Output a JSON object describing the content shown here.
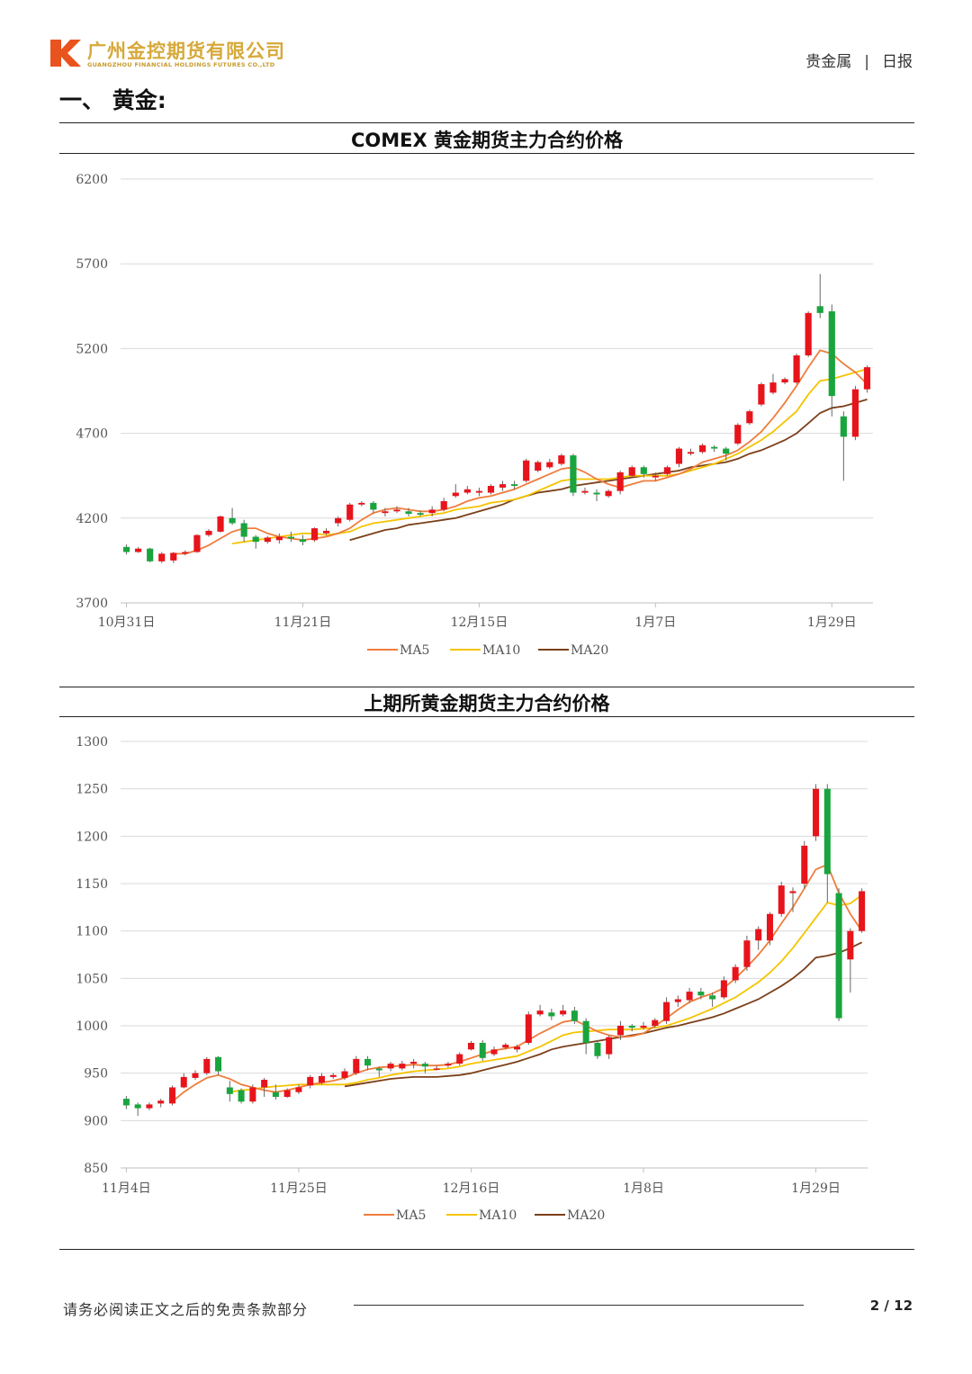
{
  "header": {
    "company_cn": "广州金控期货有限公司",
    "company_en": "GUANGZHOU FINANCIAL HOLDINGS FUTURES CO.,LTD",
    "category": "贵金属",
    "separator": "|",
    "report_type": "日报",
    "logo_letter": "K"
  },
  "section_title": "一、 黄金:",
  "colors": {
    "up": "#e8141b",
    "down": "#1aa43e",
    "ma5": "#ef7d3c",
    "ma10": "#f5c400",
    "ma20": "#7b3f1a",
    "grid": "#d9d9d9"
  },
  "chart_data": [
    {
      "type": "candlestick",
      "title": "COMEX 黄金期货主力合约价格",
      "yticks": [
        3700,
        4200,
        4700,
        5200,
        5700,
        6200
      ],
      "ylim": [
        3700,
        6200
      ],
      "xtick_labels": [
        "10月31日",
        "11月21日",
        "12月15日",
        "1月7日",
        "1月29日"
      ],
      "xtick_index": [
        0,
        15,
        30,
        45,
        60
      ],
      "legend": [
        "MA5",
        "MA10",
        "MA20"
      ],
      "legend_position": "bottom",
      "candles": [
        [
          4030,
          4000,
          4045,
          3985
        ],
        [
          4000,
          4020,
          4030,
          3995
        ],
        [
          4020,
          3945,
          4025,
          3940
        ],
        [
          3945,
          3990,
          4000,
          3935
        ],
        [
          3950,
          3995,
          4000,
          3935
        ],
        [
          3990,
          4000,
          4010,
          3980
        ],
        [
          4000,
          4100,
          4105,
          3995
        ],
        [
          4100,
          4125,
          4135,
          4090
        ],
        [
          4120,
          4210,
          4215,
          4115
        ],
        [
          4200,
          4170,
          4260,
          4160
        ],
        [
          4170,
          4090,
          4190,
          4060
        ],
        [
          4090,
          4060,
          4100,
          4020
        ],
        [
          4060,
          4085,
          4095,
          4050
        ],
        [
          4070,
          4090,
          4110,
          4050
        ],
        [
          4090,
          4080,
          4120,
          4060
        ],
        [
          4075,
          4060,
          4100,
          4040
        ],
        [
          4070,
          4140,
          4145,
          4060
        ],
        [
          4110,
          4125,
          4140,
          4100
        ],
        [
          4170,
          4200,
          4210,
          4150
        ],
        [
          4190,
          4280,
          4290,
          4180
        ],
        [
          4280,
          4290,
          4300,
          4270
        ],
        [
          4290,
          4250,
          4300,
          4230
        ],
        [
          4230,
          4240,
          4260,
          4210
        ],
        [
          4240,
          4250,
          4270,
          4230
        ],
        [
          4240,
          4225,
          4260,
          4210
        ],
        [
          4230,
          4220,
          4245,
          4210
        ],
        [
          4230,
          4250,
          4270,
          4210
        ],
        [
          4250,
          4300,
          4320,
          4240
        ],
        [
          4330,
          4350,
          4400,
          4320
        ],
        [
          4350,
          4370,
          4390,
          4340
        ],
        [
          4350,
          4360,
          4380,
          4330
        ],
        [
          4350,
          4390,
          4400,
          4340
        ],
        [
          4380,
          4400,
          4420,
          4360
        ],
        [
          4400,
          4390,
          4420,
          4370
        ],
        [
          4420,
          4540,
          4550,
          4410
        ],
        [
          4480,
          4530,
          4540,
          4470
        ],
        [
          4500,
          4530,
          4550,
          4490
        ],
        [
          4520,
          4570,
          4580,
          4510
        ],
        [
          4570,
          4350,
          4580,
          4330
        ],
        [
          4350,
          4360,
          4380,
          4340
        ],
        [
          4350,
          4340,
          4370,
          4300
        ],
        [
          4330,
          4360,
          4370,
          4320
        ],
        [
          4360,
          4470,
          4480,
          4340
        ],
        [
          4450,
          4500,
          4510,
          4440
        ],
        [
          4500,
          4460,
          4510,
          4440
        ],
        [
          4440,
          4450,
          4470,
          4420
        ],
        [
          4460,
          4500,
          4510,
          4450
        ],
        [
          4520,
          4610,
          4620,
          4500
        ],
        [
          4580,
          4590,
          4610,
          4570
        ],
        [
          4590,
          4630,
          4640,
          4580
        ],
        [
          4620,
          4610,
          4630,
          4590
        ],
        [
          4610,
          4580,
          4620,
          4540
        ],
        [
          4640,
          4750,
          4760,
          4630
        ],
        [
          4760,
          4830,
          4840,
          4750
        ],
        [
          4870,
          4990,
          5000,
          4860
        ],
        [
          4940,
          5000,
          5050,
          4930
        ],
        [
          5000,
          5020,
          5030,
          4990
        ],
        [
          5000,
          5160,
          5170,
          4990
        ],
        [
          5160,
          5410,
          5420,
          5150
        ],
        [
          5450,
          5410,
          5640,
          5380
        ],
        [
          5420,
          4920,
          5460,
          4800
        ],
        [
          4800,
          4680,
          4830,
          4420
        ],
        [
          4680,
          4960,
          4980,
          4660
        ],
        [
          4960,
          5090,
          5100,
          4940
        ]
      ],
      "ma5": [
        null,
        null,
        null,
        null,
        3990,
        3990,
        4010,
        4040,
        4080,
        4120,
        4140,
        4140,
        4110,
        4090,
        4080,
        4070,
        4080,
        4090,
        4110,
        4140,
        4190,
        4230,
        4250,
        4260,
        4250,
        4240,
        4240,
        4250,
        4270,
        4300,
        4320,
        4330,
        4350,
        4370,
        4400,
        4430,
        4460,
        4490,
        4500,
        4470,
        4430,
        4400,
        4380,
        4400,
        4420,
        4420,
        4440,
        4460,
        4490,
        4530,
        4550,
        4570,
        4600,
        4650,
        4710,
        4790,
        4880,
        4980,
        5090,
        5190,
        5170,
        5110,
        5060,
        4990
      ],
      "ma10": [
        null,
        null,
        null,
        null,
        null,
        null,
        null,
        null,
        null,
        4050,
        4060,
        4070,
        4080,
        4090,
        4100,
        4110,
        4110,
        4100,
        4110,
        4120,
        4150,
        4170,
        4180,
        4190,
        4200,
        4210,
        4220,
        4230,
        4250,
        4260,
        4270,
        4290,
        4300,
        4310,
        4330,
        4360,
        4390,
        4420,
        4430,
        4430,
        4430,
        4430,
        4440,
        4450,
        4450,
        4450,
        4450,
        4460,
        4480,
        4500,
        4520,
        4550,
        4580,
        4620,
        4660,
        4710,
        4770,
        4830,
        4930,
        5010,
        5020,
        5040,
        5060,
        5080
      ],
      "ma20": [
        null,
        null,
        null,
        null,
        null,
        null,
        null,
        null,
        null,
        null,
        null,
        null,
        null,
        null,
        null,
        null,
        null,
        null,
        null,
        4070,
        4090,
        4110,
        4130,
        4140,
        4160,
        4170,
        4180,
        4190,
        4200,
        4220,
        4240,
        4260,
        4280,
        4310,
        4330,
        4350,
        4360,
        4370,
        4390,
        4400,
        4410,
        4420,
        4430,
        4440,
        4450,
        4460,
        4470,
        4480,
        4500,
        4510,
        4520,
        4530,
        4550,
        4580,
        4600,
        4630,
        4660,
        4700,
        4760,
        4820,
        4850,
        4860,
        4880,
        4900
      ]
    },
    {
      "type": "candlestick",
      "title": "上期所黄金期货主力合约价格",
      "yticks": [
        850,
        900,
        950,
        1000,
        1050,
        1100,
        1150,
        1200,
        1250,
        1300
      ],
      "ylim": [
        850,
        1300
      ],
      "xtick_labels": [
        "11月4日",
        "11月25日",
        "12月16日",
        "1月8日",
        "1月29日"
      ],
      "xtick_index": [
        0,
        15,
        30,
        45,
        60
      ],
      "legend": [
        "MA5",
        "MA10",
        "MA20"
      ],
      "legend_position": "bottom",
      "candles": [
        [
          923,
          916,
          926,
          912
        ],
        [
          917,
          913,
          919,
          905
        ],
        [
          913,
          917,
          919,
          911
        ],
        [
          918,
          921,
          923,
          914
        ],
        [
          918,
          935,
          937,
          916
        ],
        [
          935,
          946,
          950,
          934
        ],
        [
          945,
          950,
          953,
          943
        ],
        [
          950,
          965,
          967,
          948
        ],
        [
          967,
          952,
          968,
          948
        ],
        [
          935,
          928,
          942,
          920
        ],
        [
          932,
          920,
          934,
          918
        ],
        [
          920,
          935,
          938,
          918
        ],
        [
          935,
          943,
          945,
          925
        ],
        [
          930,
          925,
          938,
          922
        ],
        [
          925,
          932,
          934,
          924
        ],
        [
          930,
          935,
          938,
          928
        ],
        [
          937,
          946,
          948,
          934
        ],
        [
          940,
          947,
          950,
          938
        ],
        [
          946,
          948,
          950,
          944
        ],
        [
          945,
          952,
          955,
          943
        ],
        [
          950,
          965,
          968,
          948
        ],
        [
          965,
          958,
          968,
          953
        ],
        [
          955,
          953,
          957,
          946
        ],
        [
          955,
          960,
          962,
          952
        ],
        [
          955,
          960,
          963,
          953
        ],
        [
          960,
          962,
          965,
          955
        ],
        [
          960,
          957,
          962,
          950
        ],
        [
          955,
          955,
          958,
          953
        ],
        [
          958,
          960,
          962,
          956
        ],
        [
          960,
          970,
          972,
          958
        ],
        [
          975,
          982,
          984,
          974
        ],
        [
          982,
          966,
          985,
          963
        ],
        [
          970,
          975,
          978,
          968
        ],
        [
          977,
          980,
          982,
          975
        ],
        [
          975,
          978,
          980,
          972
        ],
        [
          982,
          1012,
          1015,
          980
        ],
        [
          1012,
          1016,
          1022,
          1010
        ],
        [
          1014,
          1010,
          1018,
          1006
        ],
        [
          1012,
          1016,
          1022,
          1010
        ],
        [
          1016,
          1005,
          1020,
          1002
        ],
        [
          1005,
          982,
          1008,
          970
        ],
        [
          982,
          968,
          985,
          965
        ],
        [
          970,
          988,
          990,
          965
        ],
        [
          990,
          1000,
          1005,
          985
        ],
        [
          1000,
          998,
          1002,
          994
        ],
        [
          998,
          1000,
          1004,
          996
        ],
        [
          1000,
          1006,
          1008,
          998
        ],
        [
          1005,
          1025,
          1030,
          1002
        ],
        [
          1025,
          1028,
          1032,
          1020
        ],
        [
          1027,
          1036,
          1040,
          1024
        ],
        [
          1036,
          1032,
          1040,
          1028
        ],
        [
          1032,
          1028,
          1035,
          1020
        ],
        [
          1030,
          1048,
          1052,
          1028
        ],
        [
          1048,
          1062,
          1065,
          1045
        ],
        [
          1062,
          1090,
          1095,
          1058
        ],
        [
          1090,
          1102,
          1105,
          1080
        ],
        [
          1090,
          1118,
          1120,
          1085
        ],
        [
          1118,
          1148,
          1152,
          1115
        ],
        [
          1140,
          1142,
          1146,
          1120
        ],
        [
          1150,
          1190,
          1195,
          1145
        ],
        [
          1200,
          1250,
          1255,
          1195
        ],
        [
          1250,
          1160,
          1255,
          1130
        ],
        [
          1140,
          1008,
          1145,
          1005
        ],
        [
          1070,
          1100,
          1103,
          1035
        ],
        [
          1100,
          1142,
          1145,
          1098
        ]
      ],
      "ma5": [
        null,
        null,
        null,
        null,
        920,
        930,
        938,
        945,
        948,
        944,
        938,
        935,
        932,
        930,
        932,
        935,
        938,
        940,
        942,
        945,
        950,
        954,
        956,
        957,
        958,
        959,
        958,
        958,
        959,
        962,
        966,
        970,
        974,
        976,
        978,
        985,
        992,
        998,
        1004,
        1006,
        1000,
        994,
        990,
        988,
        989,
        992,
        1000,
        1008,
        1017,
        1025,
        1030,
        1034,
        1040,
        1050,
        1062,
        1075,
        1090,
        1108,
        1125,
        1145,
        1165,
        1170,
        1140,
        1118,
        1100
      ],
      "ma10": [
        null,
        null,
        null,
        null,
        null,
        null,
        null,
        null,
        null,
        930,
        932,
        933,
        935,
        936,
        937,
        938,
        938,
        938,
        938,
        938,
        940,
        943,
        945,
        948,
        950,
        952,
        953,
        954,
        955,
        957,
        960,
        962,
        964,
        966,
        968,
        973,
        978,
        984,
        990,
        993,
        994,
        995,
        996,
        996,
        996,
        997,
        998,
        1000,
        1004,
        1008,
        1013,
        1018,
        1024,
        1030,
        1038,
        1046,
        1056,
        1068,
        1082,
        1098,
        1114,
        1130,
        1127,
        1129,
        1138
      ],
      "ma20": [
        null,
        null,
        null,
        null,
        null,
        null,
        null,
        null,
        null,
        null,
        null,
        null,
        null,
        null,
        null,
        null,
        null,
        null,
        null,
        936,
        938,
        940,
        942,
        944,
        945,
        946,
        946,
        946,
        947,
        948,
        950,
        953,
        956,
        959,
        962,
        966,
        970,
        975,
        978,
        980,
        982,
        984,
        986,
        988,
        990,
        992,
        995,
        998,
        1000,
        1003,
        1006,
        1009,
        1013,
        1018,
        1023,
        1028,
        1035,
        1042,
        1050,
        1060,
        1072,
        1074,
        1077,
        1082,
        1088
      ]
    }
  ],
  "footer": {
    "disclaimer": "请务必阅读正文之后的免责条款部分",
    "page": "2 / 12"
  }
}
